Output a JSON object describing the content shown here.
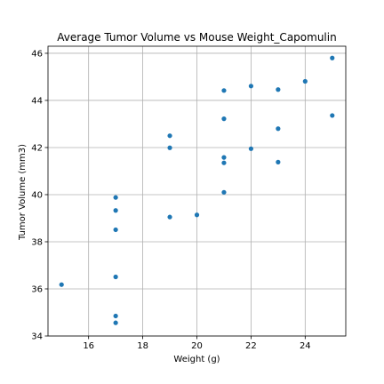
{
  "chart_data": {
    "type": "scatter",
    "title": "Average Tumor Volume vs Mouse Weight_Capomulin",
    "xlabel": "Weight (g)",
    "ylabel": "Tumor Volume (mm3)",
    "xlim": [
      14.5,
      25.5
    ],
    "ylim": [
      34,
      46.3
    ],
    "xticks": [
      16,
      18,
      20,
      22,
      24
    ],
    "yticks": [
      34,
      36,
      38,
      40,
      42,
      44,
      46
    ],
    "grid": true,
    "marker_color": "#1f77b4",
    "points": [
      {
        "x": 15,
        "y": 36.18
      },
      {
        "x": 17,
        "y": 39.88
      },
      {
        "x": 17,
        "y": 39.33
      },
      {
        "x": 17,
        "y": 38.51
      },
      {
        "x": 17,
        "y": 36.51
      },
      {
        "x": 17,
        "y": 34.85
      },
      {
        "x": 17,
        "y": 34.56
      },
      {
        "x": 19,
        "y": 42.5
      },
      {
        "x": 19,
        "y": 41.99
      },
      {
        "x": 19,
        "y": 39.05
      },
      {
        "x": 20,
        "y": 39.14
      },
      {
        "x": 21,
        "y": 44.42
      },
      {
        "x": 21,
        "y": 43.22
      },
      {
        "x": 21,
        "y": 41.58
      },
      {
        "x": 21,
        "y": 41.35
      },
      {
        "x": 21,
        "y": 40.1
      },
      {
        "x": 22,
        "y": 44.61
      },
      {
        "x": 22,
        "y": 41.95
      },
      {
        "x": 23,
        "y": 44.46
      },
      {
        "x": 23,
        "y": 42.8
      },
      {
        "x": 23,
        "y": 41.38
      },
      {
        "x": 24,
        "y": 44.81
      },
      {
        "x": 25,
        "y": 45.8
      },
      {
        "x": 25,
        "y": 43.36
      }
    ]
  }
}
